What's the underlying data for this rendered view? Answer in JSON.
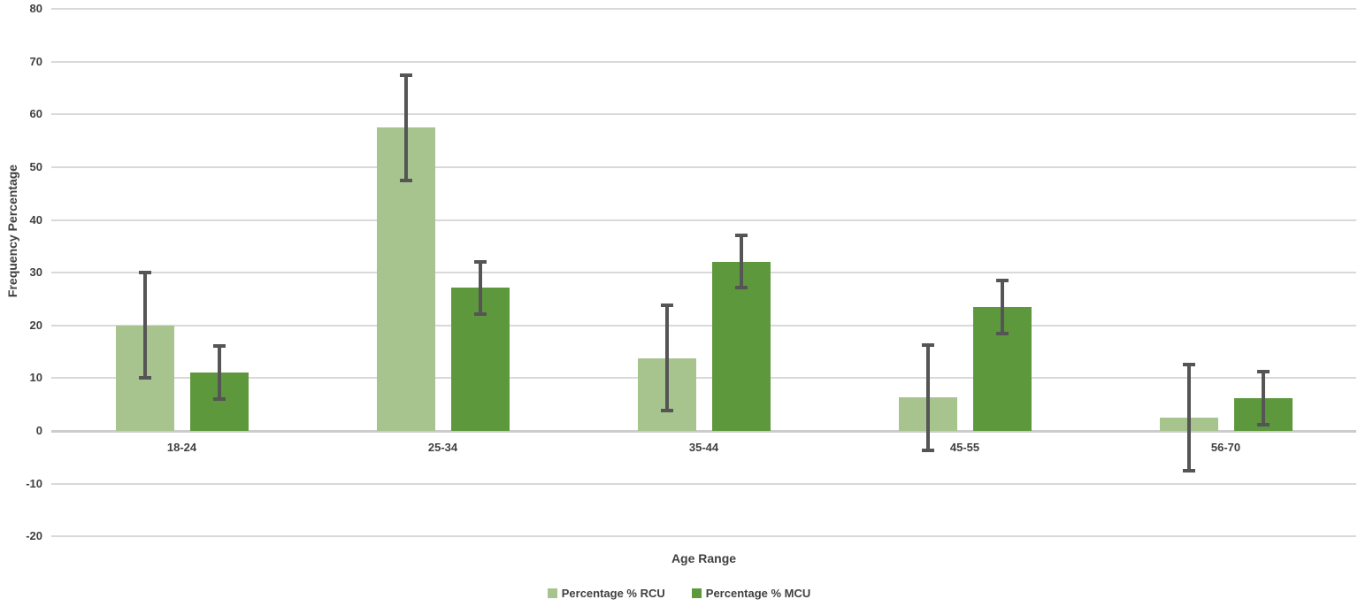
{
  "chart_data": {
    "type": "bar",
    "title": "",
    "xlabel": "Age Range",
    "ylabel": "Frequency Percentage",
    "categories": [
      "18-24",
      "25-34",
      "35-44",
      "45-55",
      "56-70"
    ],
    "series": [
      {
        "name": "Percentage % RCU",
        "color": "#a8c48e",
        "values": [
          20,
          57.5,
          13.8,
          6.3,
          2.5
        ],
        "errors": [
          10,
          10,
          10,
          10,
          10
        ]
      },
      {
        "name": "Percentage % MCU",
        "color": "#5e983d",
        "values": [
          11.1,
          27.1,
          32.1,
          23.5,
          6.2
        ],
        "errors": [
          5,
          5,
          5,
          5,
          5
        ]
      }
    ],
    "ylim": [
      -20,
      80
    ],
    "yticks": [
      80,
      70,
      60,
      50,
      40,
      30,
      20,
      10,
      0,
      -10,
      -20
    ],
    "grid": true,
    "legend_position": "bottom",
    "colors": {
      "error_bar": "#555555",
      "gridline": "#d9d9d9",
      "axis_line": "#cccccc",
      "text": "#404040",
      "background": "#ffffff"
    }
  }
}
